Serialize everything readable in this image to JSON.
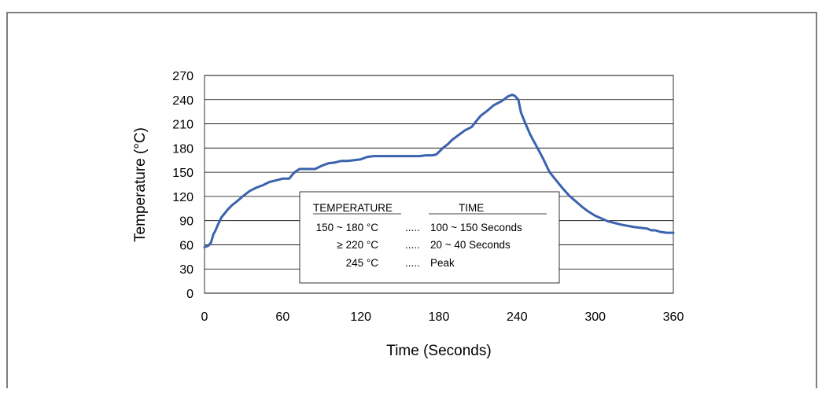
{
  "chart_data": {
    "type": "line",
    "xlabel": "Time (Seconds)",
    "ylabel": "Temperature (°C)",
    "xlim": [
      0,
      360
    ],
    "ylim": [
      0,
      270
    ],
    "xticks": [
      "0",
      "60",
      "120",
      "180",
      "240",
      "300",
      "360"
    ],
    "yticks": [
      "0",
      "30",
      "60",
      "90",
      "120",
      "150",
      "180",
      "210",
      "240",
      "270"
    ],
    "grid": "horizontal",
    "series_color": "#3a62ad",
    "x": [
      0,
      3,
      5,
      7,
      8,
      10,
      13,
      15,
      18,
      21,
      25,
      30,
      35,
      40,
      45,
      50,
      55,
      60,
      65,
      68,
      70,
      73,
      77,
      85,
      90,
      95,
      100,
      105,
      110,
      115,
      120,
      125,
      130,
      140,
      150,
      160,
      165,
      170,
      175,
      178,
      183,
      187,
      190,
      195,
      200,
      205,
      208,
      212,
      217,
      222,
      228,
      233,
      236,
      238,
      241,
      243,
      246,
      250,
      255,
      260,
      265,
      270,
      275,
      280,
      285,
      290,
      295,
      300,
      310,
      320,
      330,
      340,
      343,
      346,
      350,
      355,
      360
    ],
    "y": [
      57,
      59,
      63,
      74,
      76,
      84,
      94,
      98,
      104,
      109,
      114,
      121,
      127,
      131,
      134,
      138,
      140,
      142,
      142,
      148,
      151,
      154,
      154,
      154,
      158,
      161,
      162,
      164,
      164,
      165,
      166,
      169,
      170,
      170,
      170,
      170,
      170,
      171,
      171,
      172,
      180,
      185,
      190,
      196,
      202,
      206,
      212,
      220,
      226,
      233,
      238,
      244,
      246,
      245,
      240,
      224,
      212,
      197,
      182,
      167,
      150,
      140,
      130,
      121,
      114,
      107,
      101,
      96,
      89,
      85,
      82,
      80,
      78,
      78,
      76,
      75,
      75
    ],
    "legend": {
      "header_left": "TEMPERATURE",
      "header_right": "TIME",
      "rows": [
        {
          "temperature": "150 ~ 180 °C",
          "sep": ".....",
          "time": "100 ~ 150 Seconds"
        },
        {
          "temperature": "≥ 220 °C",
          "sep": ".....",
          "time": "20 ~ 40 Seconds"
        },
        {
          "temperature": "245 °C",
          "sep": ".....",
          "time": "Peak"
        }
      ]
    }
  }
}
